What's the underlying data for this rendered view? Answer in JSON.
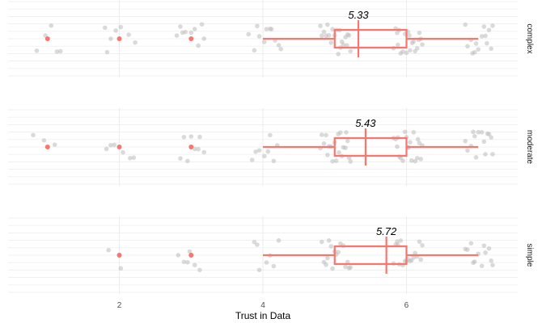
{
  "chart_data": {
    "type": "boxplot",
    "xlabel": "Trust in Data",
    "x_ticks": [
      2,
      4,
      6
    ],
    "xlim": [
      0.45,
      7.55
    ],
    "facet_position": "right",
    "colors": {
      "box": "#F8766D",
      "jitter": "#BBBBBB",
      "outlier": "#F8766D",
      "grid": "#EBEBEB"
    },
    "panels": [
      {
        "facet": "complex",
        "mean_label": "5.33",
        "box": {
          "whisker_low": 4,
          "q1": 5,
          "median": 5.33,
          "q3": 6,
          "whisker_high": 7
        },
        "outliers": [
          1,
          2,
          3
        ],
        "jitter": {
          "1": [
            0.85,
            1.13,
            1.05,
            0.97,
            1.18
          ],
          "2": [
            1.8,
            2.13,
            1.88,
            2.22,
            1.95,
            2.02,
            1.83
          ],
          "3": [
            2.8,
            3.05,
            3.18,
            2.92,
            2.85,
            3.1,
            3.0,
            2.88,
            3.15
          ],
          "4": [
            3.88,
            4.12,
            4.25,
            3.95,
            4.05,
            4.17,
            3.8,
            4.22,
            4.02,
            3.92,
            4.1
          ],
          "5": [
            4.82,
            4.9,
            5.05,
            5.18,
            4.95,
            5.1,
            5.22,
            4.85,
            5.0,
            5.15,
            4.92,
            5.08,
            4.88,
            5.2,
            5.03,
            4.97,
            5.12,
            4.8,
            5.07,
            5.17
          ],
          "6": [
            5.82,
            5.95,
            6.05,
            6.15,
            5.88,
            6.1,
            6.2,
            5.92,
            6.02,
            6.18,
            5.85,
            5.98,
            6.08,
            6.22,
            5.9,
            6.12,
            6.0,
            5.87,
            6.17,
            6.04
          ],
          "7": [
            6.82,
            6.95,
            7.1,
            7.18,
            6.9,
            7.05,
            7.2,
            6.85,
            7.0,
            7.15,
            6.92,
            7.08,
            6.97,
            7.12
          ]
        }
      },
      {
        "facet": "moderate",
        "mean_label": "5.43",
        "box": {
          "whisker_low": 4,
          "q1": 5,
          "median": 5.43,
          "q3": 6,
          "whisker_high": 7
        },
        "outliers": [
          1,
          2,
          3
        ],
        "jitter": {
          "1": [
            0.8,
            1.1,
            0.95
          ],
          "2": [
            1.82,
            2.15,
            1.93,
            2.05,
            1.88,
            2.2
          ],
          "3": [
            2.85,
            3.1,
            2.95,
            3.05,
            3.18,
            2.9,
            3.12,
            3.0
          ],
          "4": [
            3.85,
            4.1,
            4.2,
            3.95,
            4.02,
            4.15,
            3.9,
            4.07
          ],
          "5": [
            4.82,
            4.92,
            5.05,
            5.18,
            4.95,
            5.12,
            5.22,
            4.88,
            5.0,
            5.15,
            4.9,
            5.08,
            4.85,
            5.2,
            5.02,
            4.97,
            5.1,
            4.8,
            5.06,
            5.16
          ],
          "6": [
            5.82,
            5.95,
            6.07,
            6.18,
            5.88,
            6.12,
            6.22,
            5.9,
            6.02,
            6.15,
            5.85,
            5.98,
            6.1,
            6.2,
            5.92,
            6.05,
            6.0,
            5.87,
            6.16,
            6.03
          ],
          "7": [
            6.82,
            6.95,
            7.08,
            7.2,
            6.9,
            7.05,
            7.18,
            6.85,
            7.0,
            7.15,
            6.93,
            7.1,
            6.97,
            7.13
          ]
        }
      },
      {
        "facet": "simple",
        "mean_label": "5.72",
        "box": {
          "whisker_low": 4,
          "q1": 5,
          "median": 5.72,
          "q3": 6,
          "whisker_high": 7
        },
        "outliers": [
          2,
          3
        ],
        "jitter": {
          "2": [
            1.85,
            2.02
          ],
          "3": [
            2.82,
            2.95,
            3.05,
            2.9,
            3.12,
            2.98
          ],
          "4": [
            3.88,
            4.1,
            4.22,
            3.95,
            4.05,
            3.92,
            4.15
          ],
          "5": [
            4.82,
            4.95,
            5.08,
            5.2,
            4.9,
            5.12,
            5.18,
            4.85,
            5.02,
            5.15,
            4.92,
            5.05,
            4.88,
            5.22,
            5.0,
            4.97
          ],
          "6": [
            5.82,
            5.95,
            6.07,
            6.18,
            5.88,
            6.12,
            6.22,
            5.9,
            6.02,
            6.15,
            5.85,
            5.98,
            6.1,
            6.2,
            5.92,
            6.05,
            6.0,
            5.87
          ],
          "7": [
            6.82,
            6.95,
            7.08,
            7.2,
            6.9,
            7.05,
            7.18,
            6.85,
            7.0,
            7.15,
            6.93,
            7.1
          ]
        }
      }
    ]
  }
}
